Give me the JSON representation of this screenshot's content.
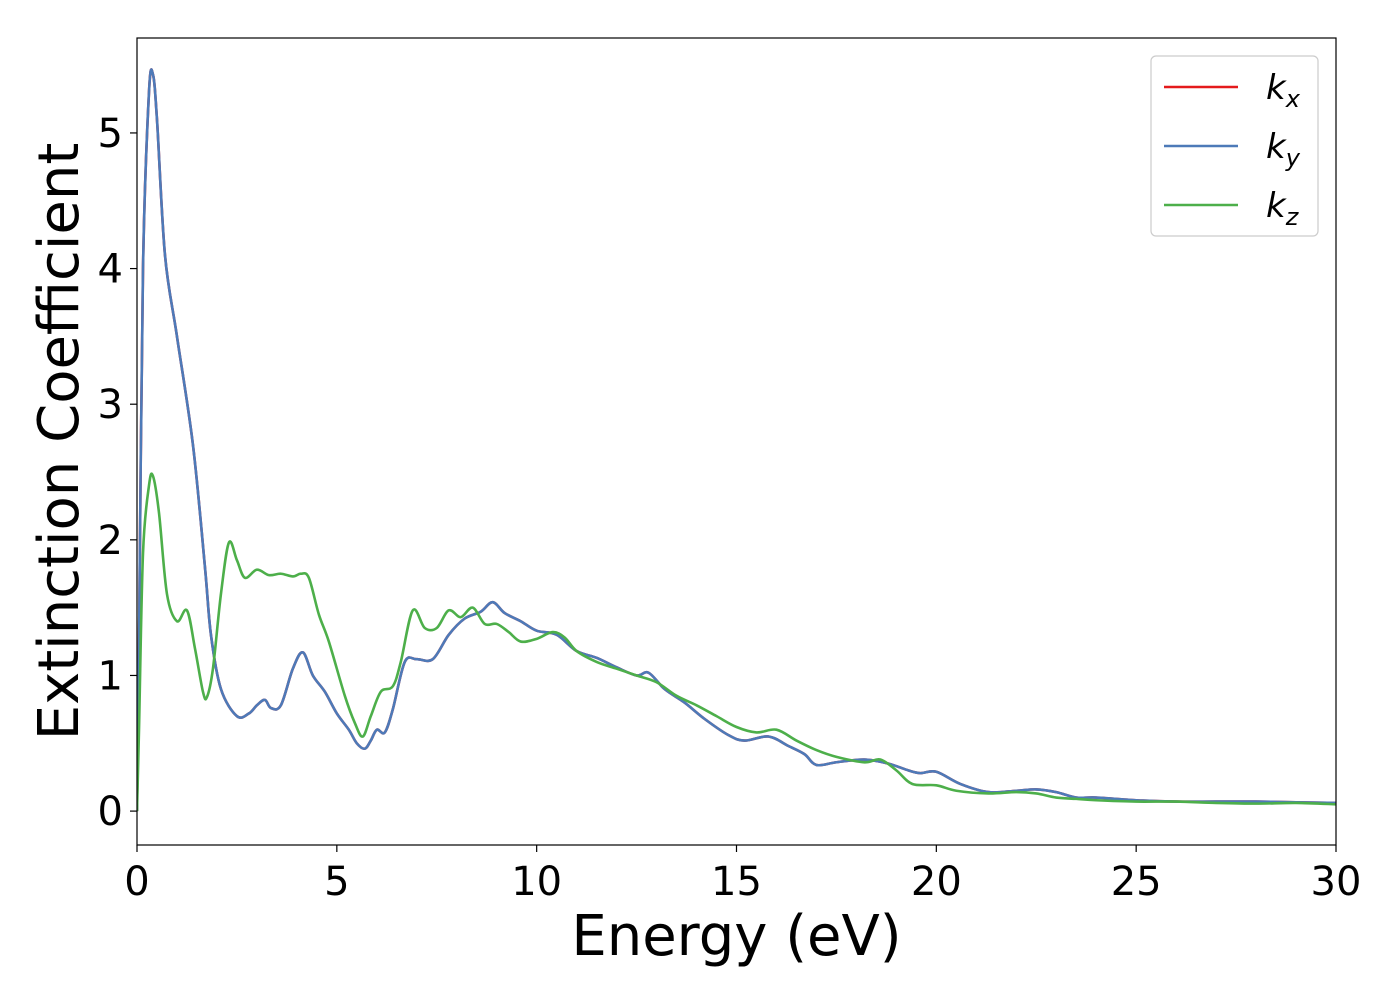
{
  "chart_data": {
    "type": "line",
    "xlabel": "Energy (eV)",
    "ylabel": "Extinction Coefficient",
    "xlim": [
      0,
      30
    ],
    "ylim": [
      -0.25,
      5.7
    ],
    "xticks": [
      0,
      5,
      10,
      15,
      20,
      25,
      30
    ],
    "yticks": [
      0,
      1,
      2,
      3,
      4,
      5
    ],
    "grid": false,
    "legend_position": "top-right",
    "series": [
      {
        "name": "k",
        "subscript": "x",
        "color": "#e41a1c",
        "x": [
          0,
          0.05,
          0.15,
          0.3,
          0.4,
          0.5,
          0.7,
          1.0,
          1.4,
          1.7,
          1.85,
          2.1,
          2.5,
          2.8,
          3.0,
          3.2,
          3.35,
          3.6,
          3.9,
          4.15,
          4.4,
          4.7,
          5.0,
          5.3,
          5.5,
          5.7,
          5.85,
          6.0,
          6.2,
          6.4,
          6.7,
          7.0,
          7.4,
          7.8,
          8.2,
          8.6,
          8.9,
          9.2,
          9.6,
          10.0,
          10.5,
          11.0,
          11.5,
          12.0,
          12.5,
          12.8,
          13.2,
          13.7,
          14.2,
          14.8,
          15.2,
          15.8,
          16.3,
          16.7,
          17.0,
          17.5,
          18.2,
          18.8,
          19.3,
          19.6,
          20.0,
          20.6,
          21.3,
          22.0,
          22.5,
          23.0,
          23.5,
          24.0,
          25.0,
          26.0,
          27.0,
          28.0,
          29.0,
          30.0
        ],
        "values": [
          0.0,
          1.2,
          4.0,
          5.3,
          5.43,
          5.1,
          4.1,
          3.5,
          2.7,
          1.8,
          1.3,
          0.9,
          0.7,
          0.72,
          0.78,
          0.82,
          0.76,
          0.78,
          1.05,
          1.17,
          1.0,
          0.88,
          0.72,
          0.6,
          0.5,
          0.46,
          0.52,
          0.6,
          0.58,
          0.75,
          1.1,
          1.12,
          1.12,
          1.3,
          1.42,
          1.47,
          1.54,
          1.46,
          1.4,
          1.33,
          1.3,
          1.18,
          1.13,
          1.06,
          1.0,
          1.02,
          0.9,
          0.8,
          0.68,
          0.56,
          0.52,
          0.55,
          0.48,
          0.42,
          0.34,
          0.36,
          0.38,
          0.35,
          0.3,
          0.28,
          0.29,
          0.2,
          0.14,
          0.15,
          0.16,
          0.14,
          0.1,
          0.1,
          0.08,
          0.07,
          0.07,
          0.07,
          0.065,
          0.06
        ]
      },
      {
        "name": "k",
        "subscript": "y",
        "color": "#4d7ab8",
        "x": [
          0,
          0.05,
          0.15,
          0.3,
          0.4,
          0.5,
          0.7,
          1.0,
          1.4,
          1.7,
          1.85,
          2.1,
          2.5,
          2.8,
          3.0,
          3.2,
          3.35,
          3.6,
          3.9,
          4.15,
          4.4,
          4.7,
          5.0,
          5.3,
          5.5,
          5.7,
          5.85,
          6.0,
          6.2,
          6.4,
          6.7,
          7.0,
          7.4,
          7.8,
          8.2,
          8.6,
          8.9,
          9.2,
          9.6,
          10.0,
          10.5,
          11.0,
          11.5,
          12.0,
          12.5,
          12.8,
          13.2,
          13.7,
          14.2,
          14.8,
          15.2,
          15.8,
          16.3,
          16.7,
          17.0,
          17.5,
          18.2,
          18.8,
          19.3,
          19.6,
          20.0,
          20.6,
          21.3,
          22.0,
          22.5,
          23.0,
          23.5,
          24.0,
          25.0,
          26.0,
          27.0,
          28.0,
          29.0,
          30.0
        ],
        "values": [
          0.0,
          1.2,
          4.0,
          5.3,
          5.43,
          5.1,
          4.1,
          3.5,
          2.7,
          1.8,
          1.3,
          0.9,
          0.7,
          0.72,
          0.78,
          0.82,
          0.76,
          0.78,
          1.05,
          1.17,
          1.0,
          0.88,
          0.72,
          0.6,
          0.5,
          0.46,
          0.52,
          0.6,
          0.58,
          0.75,
          1.1,
          1.12,
          1.12,
          1.3,
          1.42,
          1.47,
          1.54,
          1.46,
          1.4,
          1.33,
          1.3,
          1.18,
          1.13,
          1.06,
          1.0,
          1.02,
          0.9,
          0.8,
          0.68,
          0.56,
          0.52,
          0.55,
          0.48,
          0.42,
          0.34,
          0.36,
          0.38,
          0.35,
          0.3,
          0.28,
          0.29,
          0.2,
          0.14,
          0.15,
          0.16,
          0.14,
          0.1,
          0.1,
          0.08,
          0.07,
          0.07,
          0.07,
          0.065,
          0.06
        ]
      },
      {
        "name": "k",
        "subscript": "z",
        "color": "#4daf4a",
        "x": [
          0,
          0.05,
          0.15,
          0.3,
          0.4,
          0.55,
          0.75,
          1.0,
          1.25,
          1.45,
          1.65,
          1.75,
          1.9,
          2.1,
          2.3,
          2.5,
          2.7,
          3.0,
          3.3,
          3.6,
          3.9,
          4.1,
          4.3,
          4.55,
          4.8,
          5.2,
          5.45,
          5.65,
          5.85,
          6.1,
          6.4,
          6.6,
          6.9,
          7.2,
          7.5,
          7.8,
          8.1,
          8.4,
          8.7,
          9.0,
          9.3,
          9.6,
          10.0,
          10.4,
          10.7,
          11.0,
          11.5,
          12.0,
          12.5,
          13.0,
          13.5,
          14.0,
          14.5,
          15.0,
          15.5,
          16.0,
          16.5,
          17.0,
          17.5,
          18.2,
          18.6,
          19.0,
          19.4,
          20.0,
          20.5,
          21.3,
          22.0,
          22.5,
          23.0,
          23.5,
          24.0,
          25.0,
          26.0,
          27.0,
          28.0,
          29.0,
          30.0
        ],
        "values": [
          0.0,
          0.6,
          1.9,
          2.4,
          2.47,
          2.2,
          1.6,
          1.4,
          1.48,
          1.2,
          0.88,
          0.84,
          1.05,
          1.6,
          1.98,
          1.85,
          1.72,
          1.78,
          1.74,
          1.75,
          1.73,
          1.75,
          1.72,
          1.45,
          1.25,
          0.85,
          0.65,
          0.55,
          0.7,
          0.88,
          0.92,
          1.1,
          1.48,
          1.35,
          1.35,
          1.48,
          1.43,
          1.5,
          1.38,
          1.38,
          1.32,
          1.25,
          1.27,
          1.32,
          1.28,
          1.18,
          1.1,
          1.05,
          1.0,
          0.95,
          0.85,
          0.78,
          0.7,
          0.62,
          0.58,
          0.6,
          0.52,
          0.45,
          0.4,
          0.36,
          0.38,
          0.3,
          0.2,
          0.19,
          0.15,
          0.13,
          0.14,
          0.13,
          0.1,
          0.09,
          0.08,
          0.07,
          0.07,
          0.06,
          0.055,
          0.06,
          0.05
        ]
      }
    ]
  }
}
